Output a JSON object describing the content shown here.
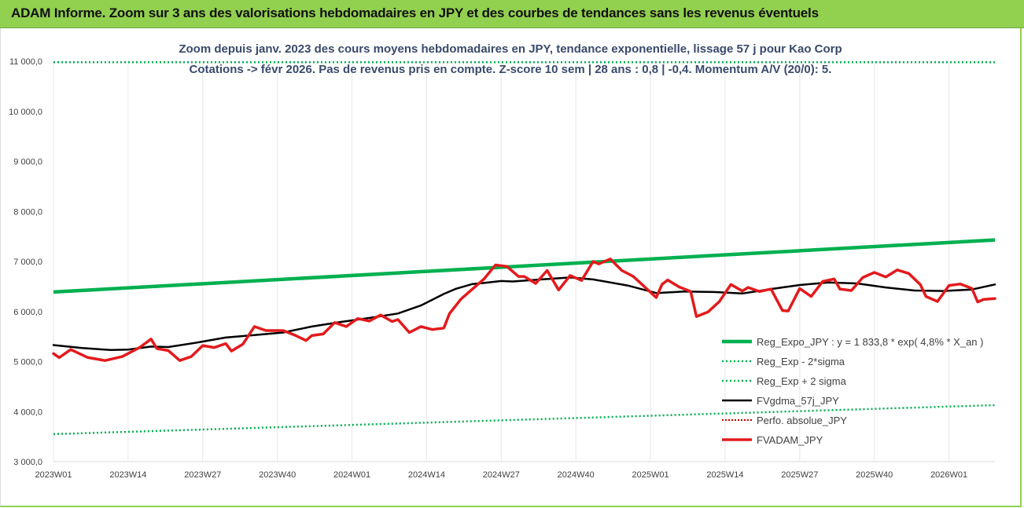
{
  "banner": {
    "title": "ADAM Informe. Zoom sur 3 ans des valorisations hebdomadaires en JPY et des courbes de tendances sans les revenus éventuels"
  },
  "colors": {
    "banner_bg": "#92d050",
    "trend": "#00b050",
    "sigma": "#00b050",
    "smooth": "#000000",
    "perf": "#c00000",
    "price": "#e31a1c"
  },
  "chart_data": {
    "type": "line",
    "title": "Zoom depuis janv. 2023 des cours moyens hebdomadaires en JPY, tendance exponentielle, lissage 57 j pour Kao Corp",
    "subtitle": "Cotations -> févr 2026. Pas de revenus pris en compte. Z-score 10 sem | 28 ans : 0,8 | -0,4. Momentum A/V (20/0): 5.",
    "xlabel": "",
    "ylabel": "",
    "ylim": [
      3000,
      11000
    ],
    "y_ticks": [
      "3 000,0",
      "4 000,0",
      "5 000,0",
      "6 000,0",
      "7 000,0",
      "8 000,0",
      "9 000,0",
      "10 000,0",
      "11 000,0"
    ],
    "x_ticks": [
      "2023W01",
      "2023W14",
      "2023W27",
      "2023W40",
      "2024W01",
      "2024W14",
      "2024W27",
      "2024W40",
      "2025W01",
      "2025W14",
      "2025W27",
      "2025W40",
      "2026W01"
    ],
    "x_range_weeks": [
      0,
      164
    ],
    "grid": "vertical",
    "legend_position": "right",
    "series": [
      {
        "name": "Reg_Expo_JPY : y = 1 833,8 * exp( 4,8% * X_an )",
        "style": "trend",
        "x": [
          0,
          164
        ],
        "values": [
          6390,
          7430
        ]
      },
      {
        "name": "Reg_Exp - 2*sigma",
        "style": "dotted",
        "x": [
          0,
          164
        ],
        "values": [
          3550,
          4130
        ]
      },
      {
        "name": "Reg_Exp + 2 sigma",
        "style": "dotted",
        "x": [
          0,
          164
        ],
        "values": [
          10980,
          10980
        ]
      },
      {
        "name": "FVgdma_57j_JPY",
        "style": "smooth",
        "x": [
          0,
          5,
          10,
          13,
          17,
          20,
          25,
          30,
          35,
          40,
          45,
          50,
          55,
          60,
          64,
          68,
          70,
          73,
          75,
          78,
          80,
          85,
          90,
          94,
          100,
          105,
          110,
          115,
          120,
          125,
          130,
          135,
          140,
          145,
          150,
          155,
          160,
          164
        ],
        "values": [
          5330,
          5270,
          5230,
          5240,
          5300,
          5290,
          5380,
          5480,
          5530,
          5580,
          5700,
          5790,
          5870,
          5960,
          6120,
          6350,
          6450,
          6550,
          6570,
          6610,
          6600,
          6640,
          6680,
          6640,
          6520,
          6370,
          6400,
          6390,
          6360,
          6450,
          6530,
          6580,
          6560,
          6480,
          6420,
          6410,
          6440,
          6540
        ]
      },
      {
        "name": "Perfo. absolue_JPY",
        "style": "dotted-red",
        "x": [],
        "values": []
      },
      {
        "name": "FVADAM_JPY",
        "style": "price",
        "x": [
          0,
          1,
          3,
          6,
          9,
          12,
          15,
          17,
          18,
          20,
          22,
          24,
          26,
          28,
          30,
          31,
          33,
          35,
          37,
          40,
          42,
          44,
          45,
          47,
          49,
          51,
          53,
          55,
          57,
          59,
          60,
          62,
          64,
          66,
          68,
          69,
          71,
          73,
          75,
          77,
          79,
          81,
          82,
          84,
          86,
          88,
          90,
          92,
          94,
          95,
          97,
          99,
          101,
          103,
          105,
          106,
          107,
          109,
          111,
          112,
          114,
          116,
          118,
          120,
          121,
          123,
          125,
          127,
          128,
          130,
          132,
          134,
          136,
          137,
          139,
          141,
          143,
          145,
          147,
          149,
          151,
          152,
          154,
          156,
          158,
          160,
          161,
          162,
          164
        ],
        "values": [
          5160,
          5080,
          5240,
          5080,
          5020,
          5100,
          5280,
          5450,
          5260,
          5220,
          5020,
          5100,
          5320,
          5280,
          5360,
          5210,
          5350,
          5700,
          5620,
          5620,
          5530,
          5420,
          5520,
          5550,
          5780,
          5700,
          5860,
          5810,
          5930,
          5800,
          5840,
          5580,
          5700,
          5640,
          5670,
          5960,
          6250,
          6450,
          6650,
          6930,
          6900,
          6700,
          6700,
          6560,
          6820,
          6430,
          6720,
          6620,
          7000,
          6950,
          7050,
          6820,
          6700,
          6490,
          6280,
          6540,
          6630,
          6490,
          6400,
          5900,
          5990,
          6200,
          6540,
          6410,
          6480,
          6400,
          6450,
          6020,
          6010,
          6460,
          6300,
          6600,
          6650,
          6450,
          6420,
          6680,
          6780,
          6690,
          6830,
          6760,
          6540,
          6300,
          6200,
          6520,
          6550,
          6460,
          6190,
          6240,
          6260
        ]
      }
    ],
    "legend": [
      "Reg_Expo_JPY : y = 1 833,8 * exp( 4,8% * X_an )",
      "Reg_Exp - 2*sigma",
      "Reg_Exp + 2 sigma",
      "FVgdma_57j_JPY",
      "Perfo. absolue_JPY",
      "FVADAM_JPY"
    ]
  }
}
